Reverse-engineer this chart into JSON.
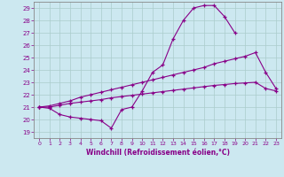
{
  "xlabel": "Windchill (Refroidissement éolien,°C)",
  "background_color": "#cce8f0",
  "line_color": "#880088",
  "grid_color": "#aacccc",
  "xlim": [
    -0.5,
    23.5
  ],
  "ylim": [
    18.5,
    29.5
  ],
  "xticks": [
    0,
    1,
    2,
    3,
    4,
    5,
    6,
    7,
    8,
    9,
    10,
    11,
    12,
    13,
    14,
    15,
    16,
    17,
    18,
    19,
    20,
    21,
    22,
    23
  ],
  "yticks": [
    19,
    20,
    21,
    22,
    23,
    24,
    25,
    26,
    27,
    28,
    29
  ],
  "line1_x": [
    0,
    1,
    2,
    3,
    4,
    5,
    6,
    7,
    8,
    9,
    10,
    11,
    12,
    13,
    14,
    15,
    16,
    17,
    18,
    19
  ],
  "line1_y": [
    21.0,
    20.9,
    20.4,
    20.2,
    20.1,
    20.0,
    19.9,
    19.3,
    20.8,
    21.0,
    22.3,
    23.8,
    24.4,
    26.5,
    28.0,
    29.0,
    29.2,
    29.2,
    28.3,
    27.0
  ],
  "line2_x": [
    0,
    1,
    2,
    3,
    4,
    5,
    6,
    7,
    8,
    9,
    10,
    11,
    12,
    13,
    14,
    15,
    16,
    17,
    18,
    19,
    20,
    21,
    22,
    23
  ],
  "line2_y": [
    21.0,
    21.1,
    21.3,
    21.5,
    21.8,
    22.0,
    22.2,
    22.4,
    22.6,
    22.8,
    23.0,
    23.2,
    23.4,
    23.6,
    23.8,
    24.0,
    24.2,
    24.5,
    24.7,
    24.9,
    25.1,
    25.4,
    23.8,
    22.5
  ],
  "line3_x": [
    0,
    1,
    2,
    3,
    4,
    5,
    6,
    7,
    8,
    9,
    10,
    11,
    12,
    13,
    14,
    15,
    16,
    17,
    18,
    19,
    20,
    21,
    22,
    23
  ],
  "line3_y": [
    21.0,
    21.0,
    21.15,
    21.3,
    21.4,
    21.5,
    21.6,
    21.75,
    21.85,
    21.95,
    22.05,
    22.15,
    22.25,
    22.35,
    22.45,
    22.55,
    22.65,
    22.75,
    22.82,
    22.9,
    22.95,
    23.0,
    22.5,
    22.3
  ]
}
